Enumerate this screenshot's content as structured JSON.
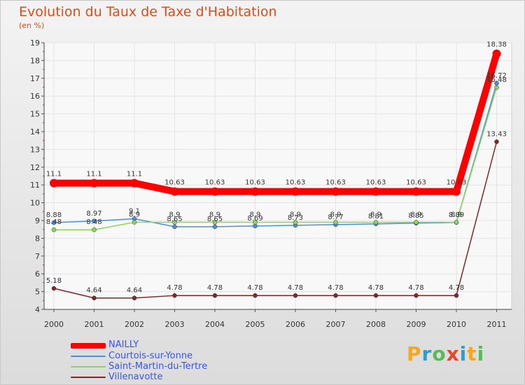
{
  "chart_data": {
    "type": "line",
    "title": "Evolution du Taux de Taxe d'Habitation",
    "subtitle": "(en %)",
    "categories": [
      "2000",
      "2001",
      "2002",
      "2003",
      "2004",
      "2005",
      "2006",
      "2007",
      "2008",
      "2009",
      "2010",
      "2011"
    ],
    "ylim": [
      4,
      19
    ],
    "yticks": [
      "4",
      "5",
      "6",
      "7",
      "8",
      "9",
      "10",
      "11",
      "12",
      "13",
      "14",
      "15",
      "16",
      "17",
      "18",
      "19"
    ],
    "series": [
      {
        "name": "NAILLY",
        "color": "#ff0000",
        "values": [
          11.1,
          11.1,
          11.1,
          10.63,
          10.63,
          10.63,
          10.63,
          10.63,
          10.63,
          10.63,
          10.63,
          18.38
        ],
        "labels": [
          "11.1",
          "11.1",
          "11.1",
          "10.63",
          "10.63",
          "10.63",
          "10.63",
          "10.63",
          "10.63",
          "10.63",
          "10.63",
          "18.38"
        ]
      },
      {
        "name": "Courtois-sur-Yonne",
        "color": "#4a90d9",
        "values": [
          8.88,
          8.97,
          9.1,
          8.65,
          8.65,
          8.69,
          8.73,
          8.77,
          8.81,
          8.85,
          8.89,
          16.72
        ],
        "labels": [
          "8.88",
          "8.97",
          "9.1",
          "8.65",
          "8.65",
          "8.69",
          "8.73",
          "8.77",
          "8.81",
          "8.85",
          "8.89",
          "16.72"
        ]
      },
      {
        "name": "Saint-Martin-du-Tertre",
        "color": "#8bd65a",
        "values": [
          8.48,
          8.48,
          8.9,
          8.9,
          8.9,
          8.9,
          8.9,
          8.9,
          8.9,
          8.9,
          8.9,
          16.48
        ],
        "labels": [
          "8.48",
          "8.48",
          "8.9",
          "8.9",
          "8.9",
          "8.9",
          "8.9",
          "8.9",
          "8.9",
          "8.9",
          "8.9",
          "16.48"
        ]
      },
      {
        "name": "Villenavotte",
        "color": "#7a2a2a",
        "values": [
          5.18,
          4.64,
          4.64,
          4.78,
          4.78,
          4.78,
          4.78,
          4.78,
          4.78,
          4.78,
          4.78,
          13.43
        ],
        "labels": [
          "5.18",
          "4.64",
          "4.64",
          "4.78",
          "4.78",
          "4.78",
          "4.78",
          "4.78",
          "4.78",
          "4.78",
          "4.78",
          "13.43"
        ]
      }
    ]
  },
  "logo": {
    "p": "P",
    "r": "r",
    "o": "o",
    "x": "x",
    "i": "i",
    "t": "t",
    "i2": "i"
  }
}
